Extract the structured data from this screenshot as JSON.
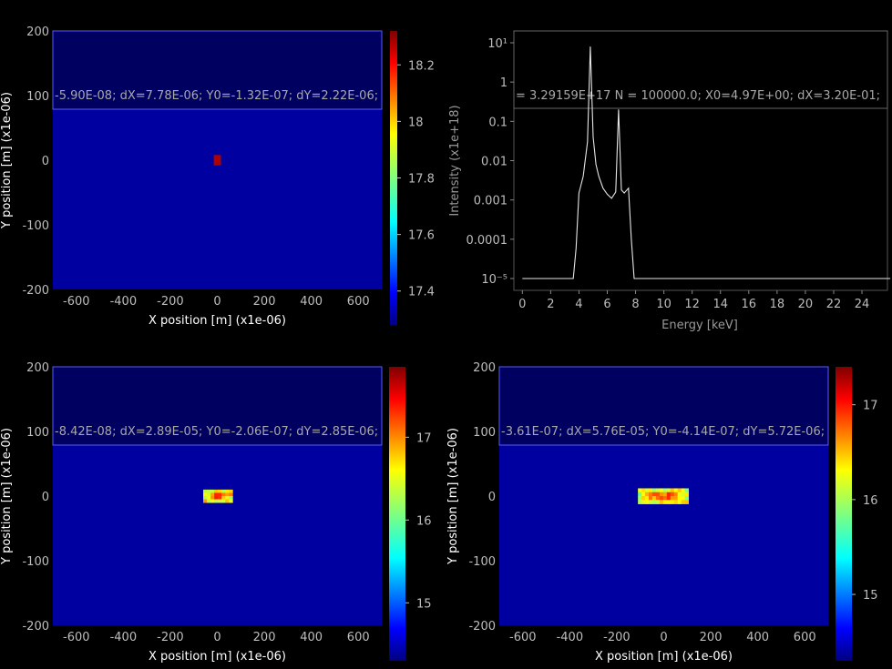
{
  "chart_data": [
    {
      "type": "heatmap",
      "xlabel": "X position [m] (x1e-06)",
      "ylabel": "Y position [m] (x1e-06)",
      "xlim": [
        -700,
        700
      ],
      "ylim": [
        -200,
        200
      ],
      "xticks": [
        "-600",
        "-400",
        "-200",
        "0",
        "200",
        "400",
        "600"
      ],
      "yticks": [
        "200",
        "100",
        "0",
        "-100",
        "-200"
      ],
      "stats_text": "-5.90E-08; dX=7.78E-06; Y0=-1.32E-07; dY=2.22E-06;",
      "colorbar_ticks": [
        "18.2",
        "18",
        "17.8",
        "17.6",
        "17.4"
      ],
      "colorbar_range": [
        17.28,
        18.32
      ],
      "hot_region": {
        "x": [
          -15,
          15
        ],
        "y": [
          -8,
          8
        ]
      }
    },
    {
      "type": "line",
      "xlabel": "Energy [keV]",
      "ylabel": "Intensity (x1e+18)",
      "xlim": [
        -0.6,
        25.8
      ],
      "ylog": true,
      "ylim": [
        5e-06,
        20
      ],
      "xticks": [
        "0",
        "2",
        "4",
        "6",
        "8",
        "10",
        "12",
        "14",
        "16",
        "18",
        "20",
        "22",
        "24"
      ],
      "yticks": [
        "10¹",
        "1",
        "0.1",
        "0.01",
        "0.001",
        "0.0001",
        "10⁻⁵"
      ],
      "stats_text": "= 3.29159E+17 N = 100000.0; X0=4.97E+00; dX=3.20E-01;",
      "x": [
        0,
        3.6,
        3.8,
        4.0,
        4.3,
        4.6,
        4.8,
        5.0,
        5.2,
        5.4,
        5.7,
        6.0,
        6.3,
        6.6,
        6.8,
        7.0,
        7.2,
        7.5,
        7.7,
        7.9,
        8.2,
        26
      ],
      "y": [
        1e-05,
        1e-05,
        6e-05,
        0.0015,
        0.004,
        0.03,
        8,
        0.04,
        0.008,
        0.004,
        0.002,
        0.0014,
        0.0011,
        0.0016,
        0.2,
        0.0018,
        0.0015,
        0.002,
        0.0001,
        1e-05,
        1e-05,
        1e-05
      ]
    },
    {
      "type": "heatmap",
      "xlabel": "X position [m] (x1e-06)",
      "ylabel": "Y position [m] (x1e-06)",
      "xlim": [
        -700,
        700
      ],
      "ylim": [
        -200,
        200
      ],
      "xticks": [
        "-600",
        "-400",
        "-200",
        "0",
        "200",
        "400",
        "600"
      ],
      "yticks": [
        "200",
        "100",
        "0",
        "-100",
        "-200"
      ],
      "stats_text": "-8.42E-08; dX=2.89E-05; Y0=-2.06E-07; dY=2.85E-06;",
      "colorbar_ticks": [
        "17",
        "16",
        "15"
      ],
      "colorbar_range": [
        14.3,
        17.85
      ],
      "hot_region": {
        "x": [
          -60,
          65
        ],
        "y": [
          -10,
          10
        ]
      }
    },
    {
      "type": "heatmap",
      "xlabel": "X position [m] (x1e-06)",
      "ylabel": "Y position [m] (x1e-06)",
      "xlim": [
        -700,
        700
      ],
      "ylim": [
        -200,
        200
      ],
      "xticks": [
        "-600",
        "-400",
        "-200",
        "0",
        "200",
        "400",
        "600"
      ],
      "yticks": [
        "200",
        "100",
        "0",
        "-100",
        "-200"
      ],
      "stats_text": "-3.61E-07; dX=5.76E-05; Y0=-4.14E-07; dY=5.72E-06;",
      "colorbar_ticks": [
        "17",
        "16",
        "15"
      ],
      "colorbar_range": [
        14.3,
        17.4
      ],
      "hot_region": {
        "x": [
          -110,
          105
        ],
        "y": [
          -12,
          12
        ]
      }
    }
  ]
}
